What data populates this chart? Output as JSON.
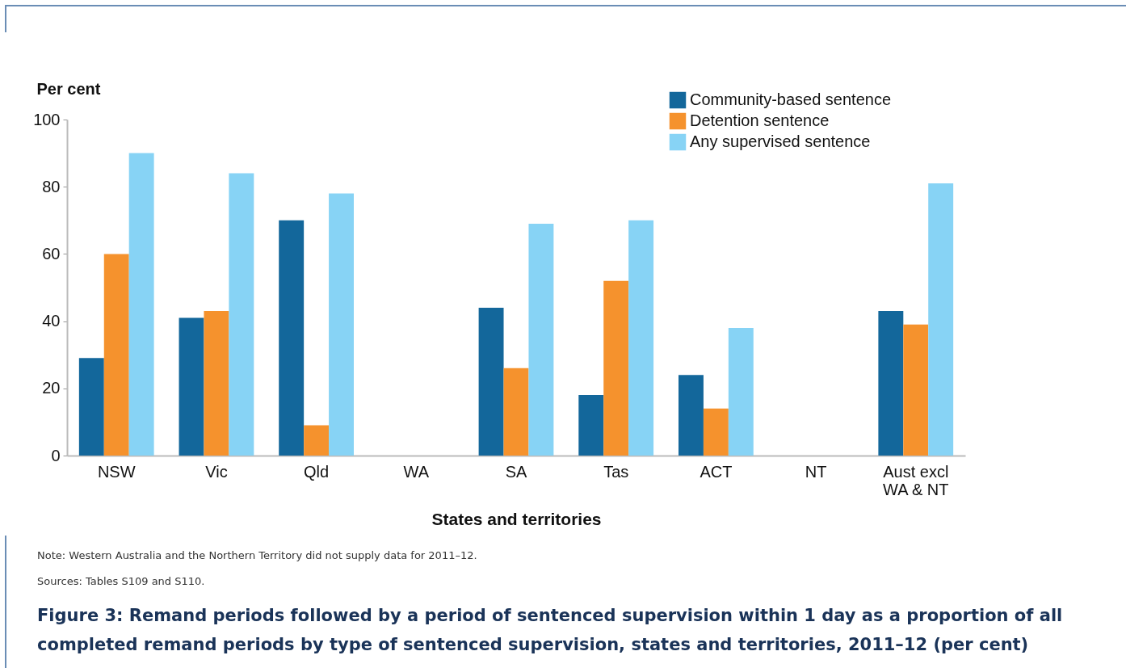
{
  "chart_data": {
    "type": "bar",
    "title": "Figure 3: Remand periods followed by a period of sentenced supervision within 1 day as a proportion of all completed remand periods by type of sentenced supervision, states and territories, 2011–12 (per cent)",
    "xlabel": "States and territories",
    "ylabel": "Per cent",
    "categories": [
      "NSW",
      "Vic",
      "Qld",
      "WA",
      "SA",
      "Tas",
      "ACT",
      "NT",
      "Aust excl WA & NT"
    ],
    "series": [
      {
        "name": "Community-based sentence",
        "color": "#13679b",
        "values": [
          29,
          41,
          70,
          null,
          44,
          18,
          24,
          null,
          43
        ]
      },
      {
        "name": "Detention sentence",
        "color": "#f5922d",
        "values": [
          60,
          43,
          9,
          null,
          26,
          52,
          14,
          null,
          39
        ]
      },
      {
        "name": "Any supervised sentence",
        "color": "#87d3f5",
        "values": [
          90,
          84,
          78,
          null,
          69,
          70,
          38,
          null,
          81
        ]
      }
    ],
    "ylim": [
      0,
      100
    ],
    "yticks": [
      0,
      20,
      40,
      60,
      80,
      100
    ],
    "grid": false,
    "legend": "top right",
    "annotations": [
      "Note: Western Australia and the Northern Territory did not supply data for 2011–12.",
      "Sources: Tables S109 and S110."
    ]
  }
}
